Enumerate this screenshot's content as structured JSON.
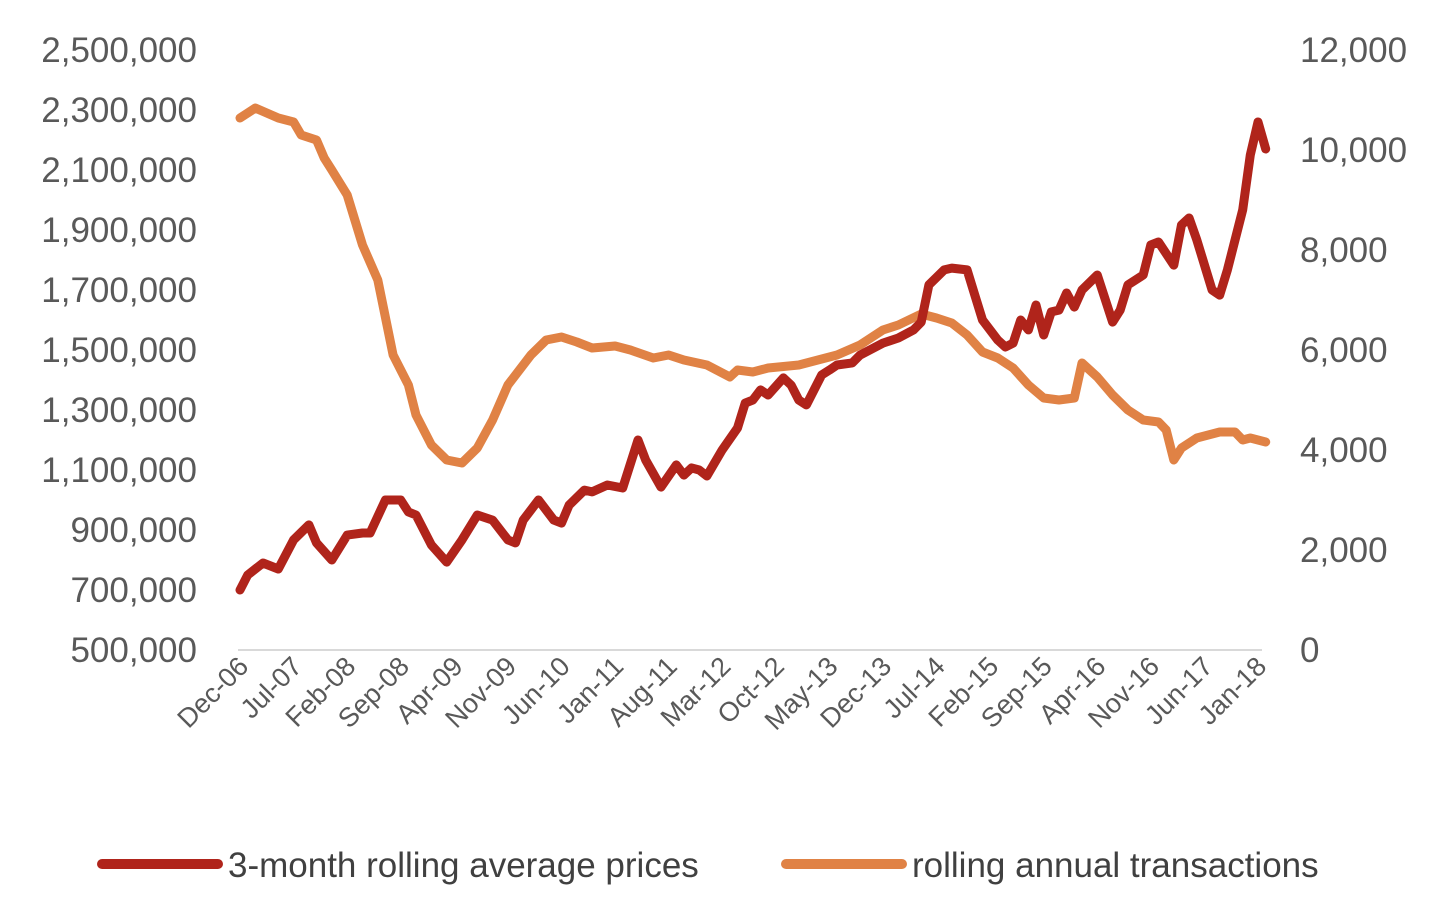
{
  "chart_data": {
    "type": "line",
    "title": "",
    "xlabel": "",
    "ylabel": "",
    "y2label": "",
    "grid": false,
    "legend_position": "bottom",
    "x_tick_labels": [
      "Dec-06",
      "Jul-07",
      "Feb-08",
      "Sep-08",
      "Apr-09",
      "Nov-09",
      "Jun-10",
      "Jan-11",
      "Aug-11",
      "Mar-12",
      "Oct-12",
      "May-13",
      "Dec-13",
      "Jul-14",
      "Feb-15",
      "Sep-15",
      "Apr-16",
      "Nov-16",
      "Jun-17",
      "Jan-18"
    ],
    "y_left": {
      "min": 500000,
      "max": 2500000,
      "ticks": [
        "500,000",
        "700,000",
        "900,000",
        "1,100,000",
        "1,300,000",
        "1,500,000",
        "1,700,000",
        "1,900,000",
        "2,100,000",
        "2,300,000",
        "2,500,000"
      ]
    },
    "y_right": {
      "min": 0,
      "max": 12000,
      "ticks": [
        "0",
        "2,000",
        "4,000",
        "6,000",
        "8,000",
        "10,000",
        "12,000"
      ]
    },
    "series": [
      {
        "name": "3-month rolling average prices",
        "axis": "left",
        "color": "#B0241B",
        "points": [
          [
            "Dec-06",
            700000
          ],
          [
            "Jan-07",
            750000
          ],
          [
            "Mar-07",
            790000
          ],
          [
            "May-07",
            770000
          ],
          [
            "Jul-07",
            867000
          ],
          [
            "Sep-07",
            917000
          ],
          [
            "Oct-07",
            857000
          ],
          [
            "Dec-07",
            800000
          ],
          [
            "Feb-08",
            883000
          ],
          [
            "Apr-08",
            890000
          ],
          [
            "May-08",
            890000
          ],
          [
            "Jul-08",
            1000000
          ],
          [
            "Sep-08",
            1000000
          ],
          [
            "Oct-08",
            960000
          ],
          [
            "Nov-08",
            950000
          ],
          [
            "Jan-09",
            850000
          ],
          [
            "Mar-09",
            793000
          ],
          [
            "May-09",
            867000
          ],
          [
            "Jul-09",
            950000
          ],
          [
            "Sep-09",
            933000
          ],
          [
            "Nov-09",
            867000
          ],
          [
            "Dec-09",
            857000
          ],
          [
            "Jan-10",
            933000
          ],
          [
            "Mar-10",
            1000000
          ],
          [
            "May-10",
            933000
          ],
          [
            "Jun-10",
            923000
          ],
          [
            "Jul-10",
            983000
          ],
          [
            "Sep-10",
            1033000
          ],
          [
            "Oct-10",
            1027000
          ],
          [
            "Dec-10",
            1050000
          ],
          [
            "Feb-11",
            1040000
          ],
          [
            "Apr-11",
            1200000
          ],
          [
            "May-11",
            1133000
          ],
          [
            "Jul-11",
            1043000
          ],
          [
            "Sep-11",
            1117000
          ],
          [
            "Oct-11",
            1083000
          ],
          [
            "Nov-11",
            1107000
          ],
          [
            "Dec-11",
            1100000
          ],
          [
            "Jan-12",
            1080000
          ],
          [
            "Mar-12",
            1167000
          ],
          [
            "May-12",
            1240000
          ],
          [
            "Jun-12",
            1323000
          ],
          [
            "Jul-12",
            1333000
          ],
          [
            "Aug-12",
            1367000
          ],
          [
            "Sep-12",
            1350000
          ],
          [
            "Nov-12",
            1407000
          ],
          [
            "Dec-12",
            1383000
          ],
          [
            "Jan-13",
            1333000
          ],
          [
            "Feb-13",
            1317000
          ],
          [
            "Apr-13",
            1417000
          ],
          [
            "May-13",
            1433000
          ],
          [
            "Jun-13",
            1450000
          ],
          [
            "Aug-13",
            1457000
          ],
          [
            "Sep-13",
            1483000
          ],
          [
            "Dec-13",
            1523000
          ],
          [
            "Feb-14",
            1540000
          ],
          [
            "Apr-14",
            1567000
          ],
          [
            "May-14",
            1593000
          ],
          [
            "Jun-14",
            1717000
          ],
          [
            "Aug-14",
            1767000
          ],
          [
            "Sep-14",
            1773000
          ],
          [
            "Nov-14",
            1767000
          ],
          [
            "Dec-14",
            1683000
          ],
          [
            "Jan-15",
            1600000
          ],
          [
            "Mar-15",
            1533000
          ],
          [
            "Apr-15",
            1510000
          ],
          [
            "May-15",
            1523000
          ],
          [
            "Jun-15",
            1600000
          ],
          [
            "Jul-15",
            1567000
          ],
          [
            "Aug-15",
            1650000
          ],
          [
            "Sep-15",
            1550000
          ],
          [
            "Oct-15",
            1627000
          ],
          [
            "Nov-15",
            1633000
          ],
          [
            "Dec-15",
            1690000
          ],
          [
            "Jan-16",
            1643000
          ],
          [
            "Feb-16",
            1700000
          ],
          [
            "Apr-16",
            1750000
          ],
          [
            "Jun-16",
            1593000
          ],
          [
            "Jul-16",
            1633000
          ],
          [
            "Aug-16",
            1717000
          ],
          [
            "Oct-16",
            1750000
          ],
          [
            "Nov-16",
            1850000
          ],
          [
            "Dec-16",
            1860000
          ],
          [
            "Feb-17",
            1783000
          ],
          [
            "Mar-17",
            1917000
          ],
          [
            "Apr-17",
            1940000
          ],
          [
            "May-17",
            1867000
          ],
          [
            "Jul-17",
            1700000
          ],
          [
            "Aug-17",
            1683000
          ],
          [
            "Sep-17",
            1767000
          ],
          [
            "Nov-17",
            1967000
          ],
          [
            "Dec-17",
            2150000
          ],
          [
            "Jan-18",
            2260000
          ],
          [
            "Feb-18",
            2170000
          ]
        ]
      },
      {
        "name": "rolling annual transactions",
        "axis": "right",
        "color": "#E08245",
        "points": [
          [
            "Dec-06",
            10640
          ],
          [
            "Feb-07",
            10840
          ],
          [
            "May-07",
            10640
          ],
          [
            "Jul-07",
            10560
          ],
          [
            "Aug-07",
            10300
          ],
          [
            "Oct-07",
            10200
          ],
          [
            "Nov-07",
            9840
          ],
          [
            "Dec-07",
            9600
          ],
          [
            "Feb-08",
            9100
          ],
          [
            "Apr-08",
            8100
          ],
          [
            "Jun-08",
            7400
          ],
          [
            "Aug-08",
            5900
          ],
          [
            "Oct-08",
            5300
          ],
          [
            "Nov-08",
            4700
          ],
          [
            "Jan-09",
            4100
          ],
          [
            "Mar-09",
            3800
          ],
          [
            "May-09",
            3740
          ],
          [
            "Jul-09",
            4040
          ],
          [
            "Sep-09",
            4600
          ],
          [
            "Nov-09",
            5300
          ],
          [
            "Feb-10",
            5900
          ],
          [
            "Apr-10",
            6200
          ],
          [
            "Jun-10",
            6260
          ],
          [
            "Aug-10",
            6160
          ],
          [
            "Oct-10",
            6040
          ],
          [
            "Jan-11",
            6080
          ],
          [
            "Mar-11",
            6000
          ],
          [
            "Jun-11",
            5840
          ],
          [
            "Aug-11",
            5900
          ],
          [
            "Oct-11",
            5800
          ],
          [
            "Jan-12",
            5700
          ],
          [
            "Apr-12",
            5460
          ],
          [
            "May-12",
            5600
          ],
          [
            "Jul-12",
            5560
          ],
          [
            "Sep-12",
            5640
          ],
          [
            "Jan-13",
            5700
          ],
          [
            "Jun-13",
            5900
          ],
          [
            "Sep-13",
            6100
          ],
          [
            "Dec-13",
            6400
          ],
          [
            "Feb-14",
            6500
          ],
          [
            "May-14",
            6720
          ],
          [
            "Jul-14",
            6640
          ],
          [
            "Sep-14",
            6540
          ],
          [
            "Nov-14",
            6300
          ],
          [
            "Jan-15",
            5960
          ],
          [
            "Mar-15",
            5840
          ],
          [
            "May-15",
            5640
          ],
          [
            "Jul-15",
            5300
          ],
          [
            "Sep-15",
            5040
          ],
          [
            "Nov-15",
            5000
          ],
          [
            "Jan-16",
            5040
          ],
          [
            "Feb-16",
            5740
          ],
          [
            "Apr-16",
            5460
          ],
          [
            "Jun-16",
            5100
          ],
          [
            "Aug-16",
            4800
          ],
          [
            "Oct-16",
            4600
          ],
          [
            "Dec-16",
            4560
          ],
          [
            "Jan-17",
            4400
          ],
          [
            "Feb-17",
            3800
          ],
          [
            "Mar-17",
            4040
          ],
          [
            "May-17",
            4240
          ],
          [
            "Aug-17",
            4360
          ],
          [
            "Oct-17",
            4360
          ],
          [
            "Nov-17",
            4200
          ],
          [
            "Dec-17",
            4240
          ],
          [
            "Feb-18",
            4160
          ]
        ]
      }
    ]
  }
}
